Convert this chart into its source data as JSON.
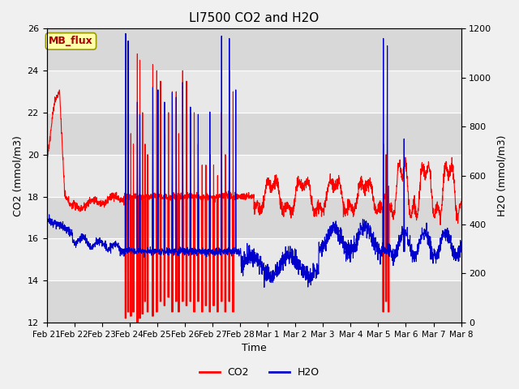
{
  "title": "LI7500 CO2 and H2O",
  "xlabel": "Time",
  "ylabel_left": "CO2 (mmol/m3)",
  "ylabel_right": "H2O (mmol/m3)",
  "ylim_left": [
    12,
    26
  ],
  "ylim_right": [
    0,
    1200
  ],
  "yticks_left": [
    12,
    14,
    16,
    18,
    20,
    22,
    24,
    26
  ],
  "yticks_right": [
    0,
    200,
    400,
    600,
    800,
    1000,
    1200
  ],
  "xtick_labels": [
    "Feb 21",
    "Feb 22",
    "Feb 23",
    "Feb 24",
    "Feb 25",
    "Feb 26",
    "Feb 27",
    "Feb 28",
    "Mar 1",
    "Mar 2",
    "Mar 3",
    "Mar 4",
    "Mar 5",
    "Mar 6",
    "Mar 7",
    "Mar 8"
  ],
  "co2_color": "#FF0000",
  "h2o_color": "#0000CD",
  "annotation_text": "MB_flux",
  "annotation_facecolor": "#FFFFAA",
  "annotation_edgecolor": "#999900",
  "annotation_textcolor": "#AA0000",
  "bg_color": "#F0F0F0",
  "plot_bg_color": "#E8E8E8",
  "linewidth": 0.8,
  "n_days": 16,
  "n_points_per_day": 144,
  "figsize": [
    6.4,
    4.8
  ],
  "dpi": 100
}
